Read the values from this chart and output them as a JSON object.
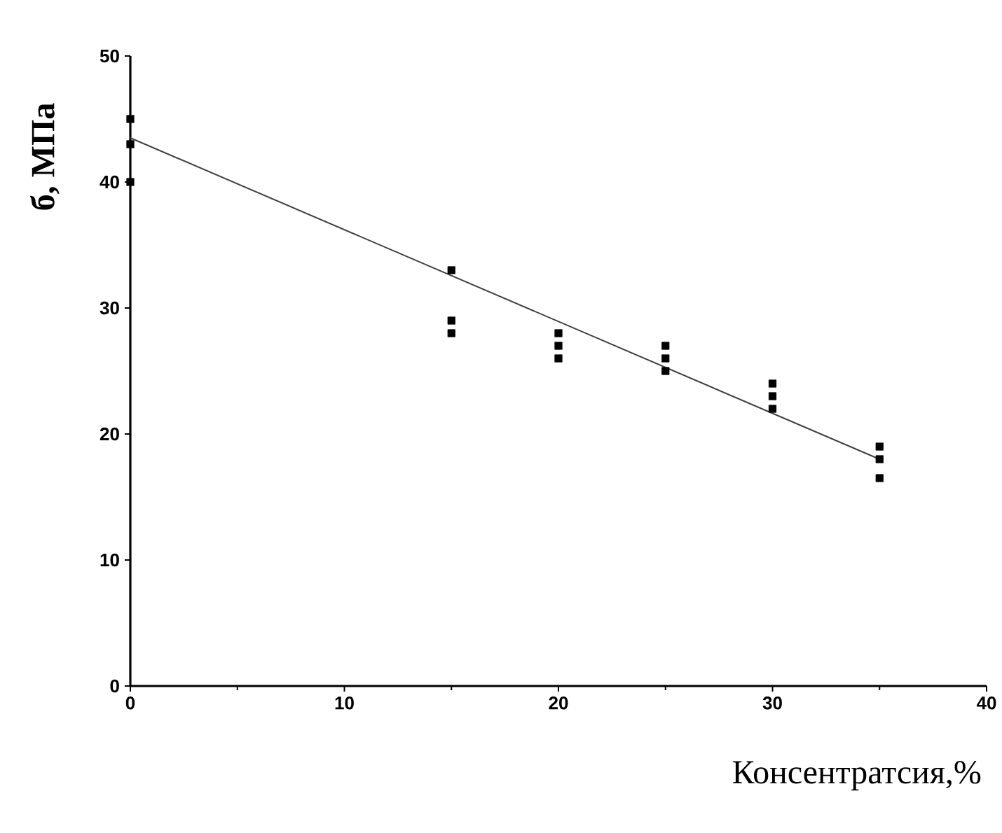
{
  "chart_data": {
    "type": "scatter",
    "xlabel": "Консентратсия,%",
    "ylabel": "б, МПа",
    "xlim": [
      0,
      40
    ],
    "ylim": [
      0,
      50
    ],
    "xticks": [
      0,
      10,
      20,
      30,
      40
    ],
    "yticks": [
      0,
      10,
      20,
      30,
      40,
      50
    ],
    "series": [
      {
        "marker": "square",
        "color": "#000000",
        "x": [
          0,
          0,
          0,
          15,
          15,
          15,
          20,
          20,
          20,
          25,
          25,
          25,
          30,
          30,
          30,
          35,
          35,
          35
        ],
        "values": [
          45,
          43,
          40,
          33,
          29,
          28,
          28,
          27,
          26,
          27,
          26,
          25,
          24,
          23,
          22,
          19,
          18,
          16.5
        ]
      },
      {
        "type": "line",
        "marker": "none",
        "color": "#404040",
        "x": [
          0,
          35
        ],
        "values": [
          43.5,
          18
        ]
      }
    ]
  }
}
